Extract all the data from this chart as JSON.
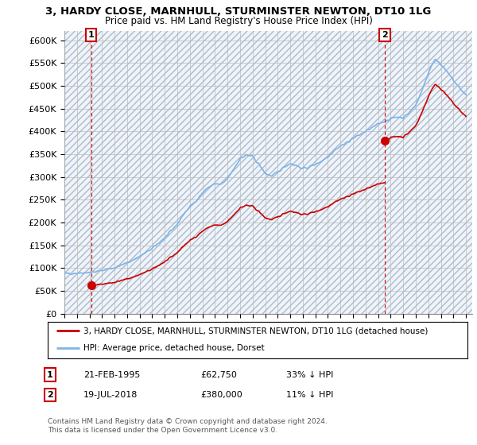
{
  "title": "3, HARDY CLOSE, MARNHULL, STURMINSTER NEWTON, DT10 1LG",
  "subtitle": "Price paid vs. HM Land Registry's House Price Index (HPI)",
  "legend_line1": "3, HARDY CLOSE, MARNHULL, STURMINSTER NEWTON, DT10 1LG (detached house)",
  "legend_line2": "HPI: Average price, detached house, Dorset",
  "sale1_date": "21-FEB-1995",
  "sale1_price": "£62,750",
  "sale1_hpi": "33% ↓ HPI",
  "sale1_x": 1995.13,
  "sale1_y": 62750,
  "sale2_date": "19-JUL-2018",
  "sale2_price": "£380,000",
  "sale2_hpi": "11% ↓ HPI",
  "sale2_x": 2018.54,
  "sale2_y": 380000,
  "hpi_color": "#7EB4E8",
  "sale_color": "#CC0000",
  "vline_color": "#CC0000",
  "grid_color": "#CCCCCC",
  "hatch_color": "#C8D8E8",
  "footer": "Contains HM Land Registry data © Crown copyright and database right 2024.\nThis data is licensed under the Open Government Licence v3.0.",
  "ylim": [
    0,
    620000
  ],
  "xlim_start": 1993,
  "xlim_end": 2025.5,
  "hpi_anchors_x": [
    1993.0,
    1993.5,
    1994.0,
    1994.5,
    1995.0,
    1995.5,
    1996.0,
    1996.5,
    1997.0,
    1997.5,
    1998.0,
    1998.5,
    1999.0,
    1999.5,
    2000.0,
    2000.5,
    2001.0,
    2001.5,
    2002.0,
    2002.5,
    2003.0,
    2003.5,
    2004.0,
    2004.5,
    2005.0,
    2005.5,
    2006.0,
    2006.5,
    2007.0,
    2007.5,
    2008.0,
    2008.5,
    2009.0,
    2009.5,
    2010.0,
    2010.5,
    2011.0,
    2011.5,
    2012.0,
    2012.5,
    2013.0,
    2013.5,
    2014.0,
    2014.5,
    2015.0,
    2015.5,
    2016.0,
    2016.5,
    2017.0,
    2017.5,
    2018.0,
    2018.5,
    2019.0,
    2019.5,
    2020.0,
    2020.5,
    2021.0,
    2021.5,
    2022.0,
    2022.3,
    2022.6,
    2023.0,
    2023.5,
    2024.0,
    2024.5,
    2025.0
  ],
  "hpi_anchors_y": [
    88000,
    88500,
    89000,
    90000,
    91000,
    92000,
    95000,
    98000,
    101000,
    106000,
    112000,
    118000,
    126000,
    134000,
    143000,
    155000,
    167000,
    181000,
    197000,
    218000,
    235000,
    248000,
    265000,
    278000,
    285000,
    283000,
    296000,
    318000,
    340000,
    348000,
    345000,
    328000,
    308000,
    302000,
    310000,
    322000,
    330000,
    325000,
    318000,
    322000,
    328000,
    335000,
    345000,
    358000,
    368000,
    375000,
    385000,
    392000,
    400000,
    408000,
    416000,
    422000,
    428000,
    432000,
    430000,
    442000,
    458000,
    490000,
    528000,
    548000,
    558000,
    548000,
    530000,
    512000,
    495000,
    480000
  ]
}
